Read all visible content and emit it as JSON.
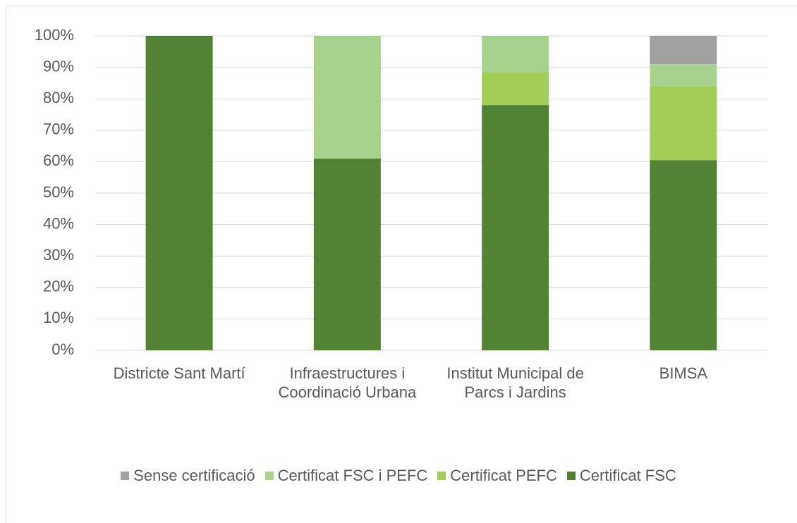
{
  "chart_data": {
    "type": "stacked_bar",
    "categories": [
      "Districte Sant Martí",
      "Infraestructures i Coordinació Urbana",
      "Institut Municipal de Parcs i Jardins",
      "BIMSA"
    ],
    "series": [
      {
        "name": "Sense certificació",
        "color": "#a0a0a0",
        "values": [
          0,
          0,
          0,
          9
        ]
      },
      {
        "name": "Certificat FSC i PEFC",
        "color": "#a9d18e",
        "values": [
          0,
          39,
          11.5,
          7
        ]
      },
      {
        "name": "Certificat PEFC",
        "color": "#a3cc58",
        "values": [
          0,
          0,
          10.5,
          23.5
        ]
      },
      {
        "name": "Certificat FSC",
        "color": "#548235",
        "values": [
          100,
          61,
          78,
          60.5
        ]
      }
    ],
    "ylim": [
      0,
      100
    ],
    "yticks": [
      {
        "value": 0,
        "label": "0%"
      },
      {
        "value": 10,
        "label": "10%"
      },
      {
        "value": 20,
        "label": "20%"
      },
      {
        "value": 30,
        "label": "30%"
      },
      {
        "value": 40,
        "label": "40%"
      },
      {
        "value": 50,
        "label": "50%"
      },
      {
        "value": 60,
        "label": "60%"
      },
      {
        "value": 70,
        "label": "70%"
      },
      {
        "value": 80,
        "label": "80%"
      },
      {
        "value": 90,
        "label": "90%"
      },
      {
        "value": 100,
        "label": "100%"
      }
    ],
    "grid": true,
    "legend": "bottom"
  }
}
